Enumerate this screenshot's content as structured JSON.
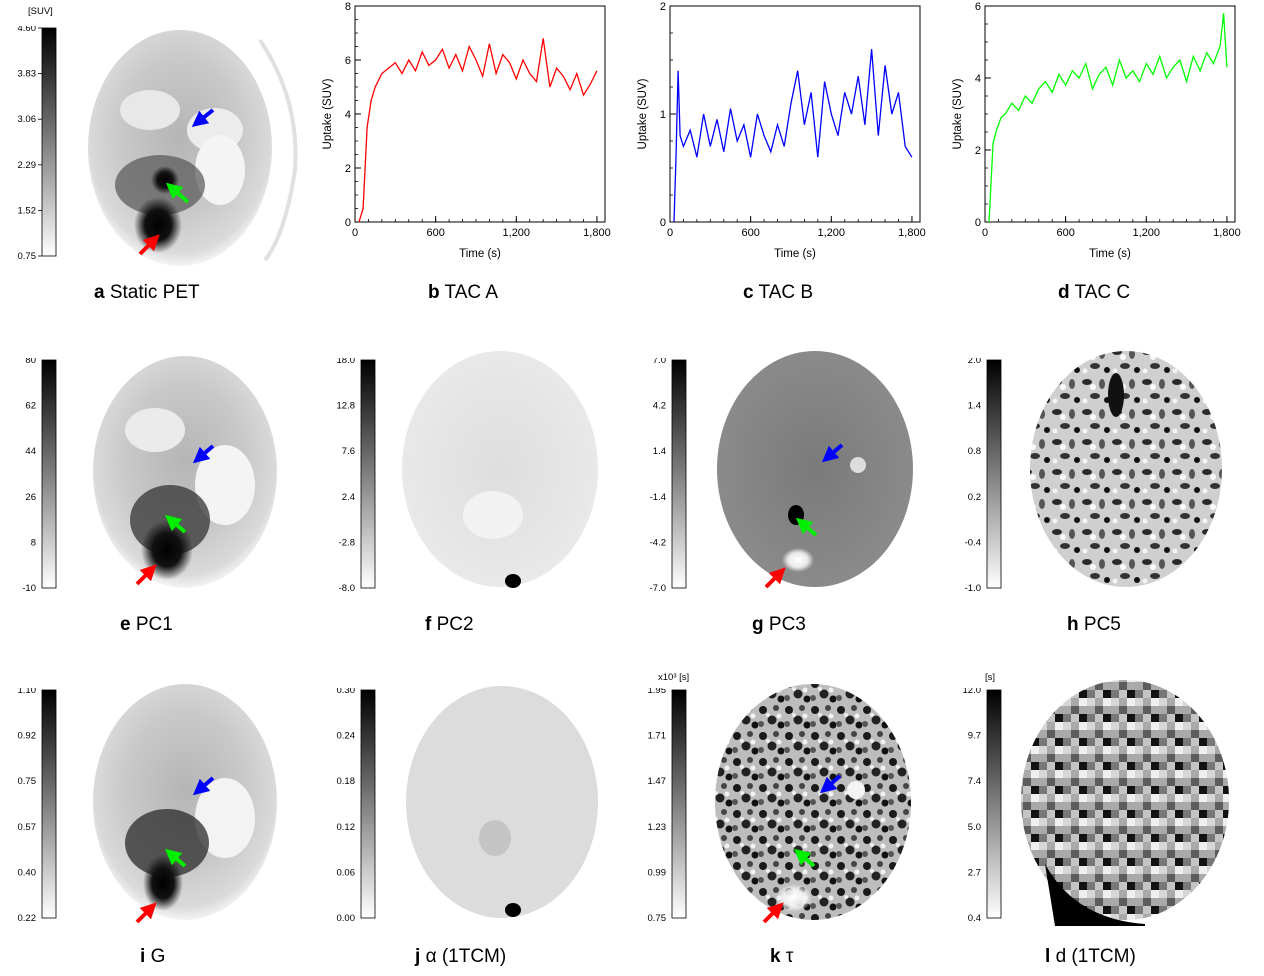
{
  "panels": {
    "a": {
      "letter": "a",
      "title": "Static PET",
      "unit": "[SUV]",
      "ticks": [
        "4.60",
        "3.83",
        "3.06",
        "2.29",
        "1.52",
        "0.75"
      ]
    },
    "b": {
      "letter": "b",
      "title": "TAC A"
    },
    "c": {
      "letter": "c",
      "title": "TAC B"
    },
    "d": {
      "letter": "d",
      "title": "TAC C"
    },
    "e": {
      "letter": "e",
      "title": "PC1",
      "unit": "",
      "ticks": [
        "80",
        "62",
        "44",
        "26",
        "8",
        "-10"
      ]
    },
    "f": {
      "letter": "f",
      "title": "PC2",
      "unit": "",
      "ticks": [
        "18.0",
        "12.8",
        "7.6",
        "2.4",
        "-2.8",
        "-8.0"
      ]
    },
    "g": {
      "letter": "g",
      "title": "PC3",
      "unit": "",
      "ticks": [
        "7.0",
        "4.2",
        "1.4",
        "-1.4",
        "-4.2",
        "-7.0"
      ]
    },
    "h": {
      "letter": "h",
      "title": "PC5",
      "unit": "",
      "ticks": [
        "2.0",
        "1.4",
        "0.8",
        "0.2",
        "-0.4",
        "-1.0"
      ]
    },
    "i": {
      "letter": "i",
      "title": "G",
      "unit": "",
      "ticks": [
        "1.10",
        "0.92",
        "0.75",
        "0.57",
        "0.40",
        "0.22"
      ]
    },
    "j": {
      "letter": "j",
      "title": "α (1TCM)",
      "unit": "",
      "ticks": [
        "0.30",
        "0.24",
        "0.18",
        "0.12",
        "0.06",
        "0.00"
      ]
    },
    "k": {
      "letter": "k",
      "title": "τ",
      "unit": "x10³ [s]",
      "ticks": [
        "1.95",
        "1.71",
        "1.47",
        "1.23",
        "0.99",
        "0.75"
      ]
    },
    "l": {
      "letter": "l",
      "title": "d (1TCM)",
      "unit": "[s]",
      "ticks": [
        "12.0",
        "9.7",
        "7.4",
        "5.0",
        "2.7",
        "0.4"
      ]
    }
  },
  "chart_data": [
    {
      "type": "line",
      "panel": "b",
      "xlabel": "Time (s)",
      "ylabel": "Uptake (SUV)",
      "xlim": [
        0,
        1860
      ],
      "ylim": [
        0,
        8
      ],
      "xticks": [
        0,
        600,
        1200,
        1800
      ],
      "xtick_labels": [
        "0",
        "600",
        "1,200",
        "1,800"
      ],
      "yticks": [
        0,
        2,
        4,
        6,
        8
      ],
      "ytick_labels": [
        "0",
        "2",
        "4",
        "6",
        "8"
      ],
      "color": "#ff0000",
      "x": [
        30,
        60,
        90,
        120,
        150,
        200,
        250,
        300,
        350,
        400,
        450,
        500,
        550,
        600,
        650,
        700,
        750,
        800,
        850,
        900,
        950,
        1000,
        1050,
        1100,
        1150,
        1200,
        1250,
        1300,
        1350,
        1400,
        1450,
        1500,
        1550,
        1600,
        1650,
        1700,
        1750,
        1800
      ],
      "y": [
        0,
        0.5,
        3.5,
        4.5,
        5.0,
        5.5,
        5.7,
        5.9,
        5.5,
        6.0,
        5.6,
        6.3,
        5.8,
        6.0,
        6.4,
        5.7,
        6.2,
        5.6,
        6.5,
        6.0,
        5.4,
        6.6,
        5.5,
        6.2,
        5.9,
        5.3,
        6.0,
        5.5,
        5.2,
        6.8,
        5.0,
        5.7,
        5.4,
        4.9,
        5.5,
        4.7,
        5.1,
        5.6
      ]
    },
    {
      "type": "line",
      "panel": "c",
      "xlabel": "Time (s)",
      "ylabel": "Uptake (SUV)",
      "xlim": [
        0,
        1860
      ],
      "ylim": [
        0,
        2
      ],
      "xticks": [
        0,
        600,
        1200,
        1800
      ],
      "xtick_labels": [
        "0",
        "600",
        "1,200",
        "1,800"
      ],
      "yticks": [
        0,
        1,
        2
      ],
      "ytick_labels": [
        "0",
        "1",
        "2"
      ],
      "color": "#0000ff",
      "x": [
        30,
        45,
        60,
        75,
        100,
        150,
        200,
        250,
        300,
        350,
        400,
        450,
        500,
        550,
        600,
        650,
        700,
        750,
        800,
        850,
        900,
        950,
        1000,
        1050,
        1100,
        1150,
        1200,
        1250,
        1300,
        1350,
        1400,
        1450,
        1500,
        1550,
        1600,
        1650,
        1700,
        1750,
        1800
      ],
      "y": [
        0,
        0.6,
        1.4,
        0.8,
        0.7,
        0.85,
        0.6,
        1.0,
        0.7,
        0.95,
        0.65,
        1.05,
        0.75,
        0.9,
        0.6,
        1.0,
        0.8,
        0.65,
        0.9,
        0.7,
        1.1,
        1.4,
        0.9,
        1.2,
        0.6,
        1.3,
        1.0,
        0.8,
        1.2,
        1.0,
        1.35,
        0.9,
        1.6,
        0.8,
        1.45,
        1.0,
        1.2,
        0.7,
        0.6
      ]
    },
    {
      "type": "line",
      "panel": "d",
      "xlabel": "Time (s)",
      "ylabel": "Uptake (SUV)",
      "xlim": [
        0,
        1860
      ],
      "ylim": [
        0,
        6
      ],
      "xticks": [
        0,
        600,
        1200,
        1800
      ],
      "xtick_labels": [
        "0",
        "600",
        "1,200",
        "1,800"
      ],
      "yticks": [
        0,
        2,
        4,
        6
      ],
      "ytick_labels": [
        "0",
        "2",
        "4",
        "6"
      ],
      "color": "#00ff00",
      "x": [
        30,
        60,
        90,
        120,
        150,
        200,
        250,
        300,
        350,
        400,
        450,
        500,
        550,
        600,
        650,
        700,
        750,
        800,
        850,
        900,
        950,
        1000,
        1050,
        1100,
        1150,
        1200,
        1250,
        1300,
        1350,
        1400,
        1450,
        1500,
        1550,
        1600,
        1650,
        1700,
        1750,
        1775,
        1800
      ],
      "y": [
        0,
        2.2,
        2.6,
        2.9,
        3.0,
        3.3,
        3.1,
        3.5,
        3.3,
        3.7,
        3.9,
        3.6,
        4.1,
        3.8,
        4.2,
        4.0,
        4.4,
        3.7,
        4.1,
        4.3,
        3.8,
        4.5,
        4.0,
        4.2,
        3.9,
        4.4,
        4.1,
        4.6,
        4.0,
        4.3,
        4.5,
        3.9,
        4.6,
        4.2,
        4.7,
        4.4,
        4.9,
        5.8,
        4.3
      ]
    }
  ]
}
